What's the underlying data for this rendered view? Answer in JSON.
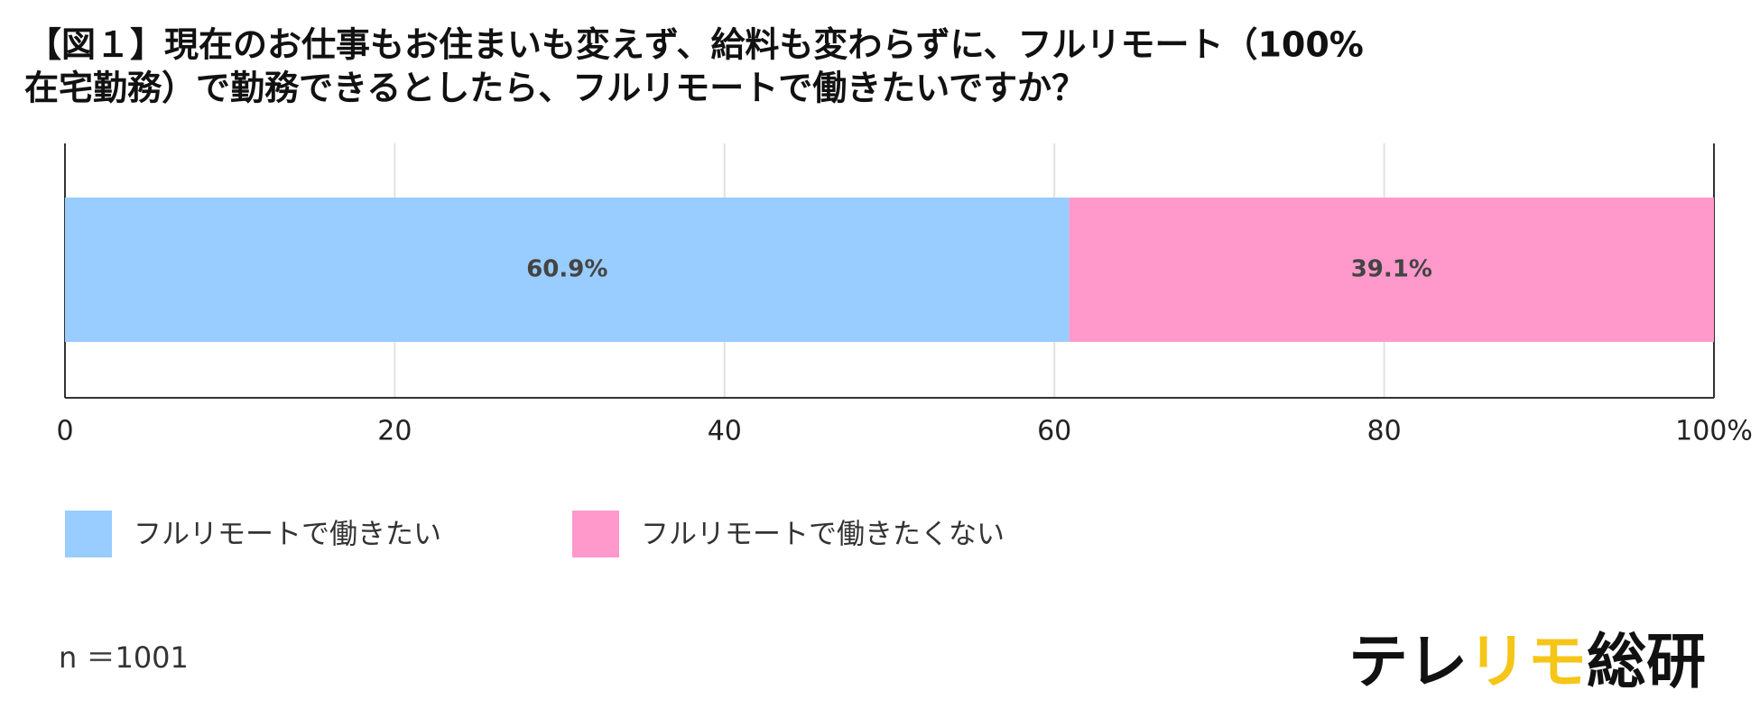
{
  "chart_data": {
    "type": "stacked-bar",
    "orientation": "horizontal",
    "title": [
      "【図１】現在のお仕事もお住まいも変えず、給料も変わらずに、フルリモート（100%",
      "在宅勤務）で勤務できるとしたら、フルリモートで働きたいですか？"
    ],
    "series": [
      {
        "name": "フルリモートで働きたい",
        "color": "#99ccff",
        "values": [
          60.9
        ],
        "value_labels": [
          "60.9%"
        ]
      },
      {
        "name": "フルリモートで働きたくない",
        "color": "#ff99cc",
        "values": [
          39.1
        ],
        "value_labels": [
          "39.1%"
        ]
      }
    ],
    "xlim": [
      0,
      100
    ],
    "xticks": [
      0,
      20,
      40,
      60,
      80,
      {
        "value": 100,
        "label": "100%"
      }
    ],
    "grid": true,
    "legend": "bottom-left",
    "note": "n ＝1001",
    "logo": [
      {
        "text": "テレ",
        "color": "#111111"
      },
      {
        "text": "リモ",
        "color": "#f5c518"
      },
      {
        "text": "総研",
        "color": "#111111"
      }
    ]
  }
}
